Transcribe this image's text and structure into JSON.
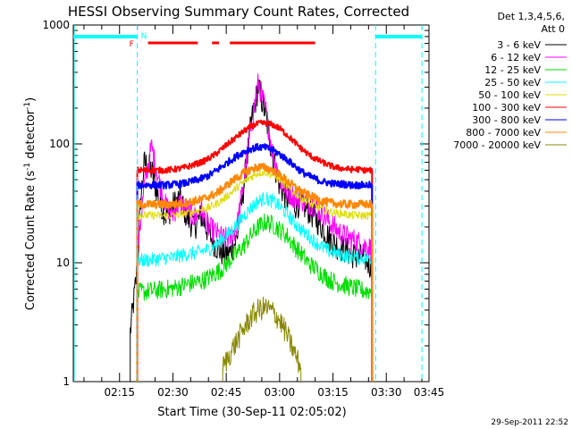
{
  "chart_data": {
    "type": "line",
    "title": "HESSI Observing Summary Count Rates, Corrected",
    "xlabel": "Start Time (30-Sep-11 02:05:02)",
    "ylabel_main": "Corrected Count Rate (s",
    "ylabel_sup1": "-1",
    "ylabel_mid": " detector",
    "ylabel_sup2": "-1",
    "ylabel_end": ")",
    "y_scale": "log",
    "ylim": [
      1,
      1000
    ],
    "xlim_minutes": [
      2.0,
      102.0
    ],
    "y_ticks": [
      {
        "value": 1,
        "label": "1"
      },
      {
        "value": 10,
        "label": "10"
      },
      {
        "value": 100,
        "label": "100"
      },
      {
        "value": 1000,
        "label": "1000"
      }
    ],
    "x_ticks": [
      {
        "value": 15,
        "label": "02:15"
      },
      {
        "value": 30,
        "label": "02:30"
      },
      {
        "value": 45,
        "label": "02:45"
      },
      {
        "value": 60,
        "label": "03:00"
      },
      {
        "value": 75,
        "label": "03:15"
      },
      {
        "value": 90,
        "label": "03:30"
      },
      {
        "value": 105,
        "label": "03:45"
      }
    ],
    "legend_header": [
      "Det 1,3,4,5,6,",
      "Att 0"
    ],
    "series": [
      {
        "name": "3 - 6 keV",
        "color": "#000000",
        "x": [
          18,
          20,
          21,
          22,
          24,
          26,
          28,
          30,
          32,
          34,
          36,
          38,
          40,
          42,
          44,
          46,
          48,
          50,
          52,
          54,
          56,
          58,
          60,
          62,
          64,
          66,
          68,
          70,
          72,
          74,
          76,
          78,
          80,
          82,
          84,
          86
        ],
        "y": [
          2.6,
          9,
          35,
          70,
          60,
          35,
          25,
          30,
          35,
          24,
          20,
          25,
          18,
          14,
          12,
          12,
          16,
          45,
          150,
          300,
          180,
          80,
          45,
          35,
          30,
          32,
          28,
          24,
          20,
          16,
          14,
          13,
          12,
          11,
          11,
          9
        ]
      },
      {
        "name": "6 - 12 keV",
        "color": "#ff00ff",
        "x": [
          20,
          22,
          24,
          26,
          28,
          30,
          32,
          34,
          36,
          38,
          40,
          42,
          44,
          46,
          48,
          50,
          52,
          54,
          56,
          58,
          60,
          62,
          64,
          66,
          68,
          70,
          72,
          74,
          76,
          78,
          80,
          82,
          84,
          86
        ],
        "y": [
          12,
          45,
          95,
          50,
          30,
          26,
          32,
          28,
          24,
          28,
          20,
          18,
          16,
          16,
          20,
          50,
          140,
          330,
          200,
          85,
          50,
          40,
          36,
          34,
          32,
          30,
          26,
          22,
          19,
          17,
          16,
          15,
          14,
          13
        ]
      },
      {
        "name": "12 - 25 keV",
        "color": "#00dd00",
        "x": [
          20,
          22,
          24,
          26,
          28,
          30,
          32,
          34,
          36,
          38,
          40,
          42,
          44,
          46,
          48,
          50,
          52,
          54,
          56,
          58,
          60,
          62,
          64,
          66,
          68,
          70,
          72,
          74,
          76,
          78,
          80,
          82,
          84,
          86
        ],
        "y": [
          5.6,
          5.7,
          5.8,
          5.9,
          6.0,
          6.1,
          6.3,
          6.6,
          6.8,
          7.0,
          7.5,
          8.2,
          9.0,
          10.5,
          12,
          14,
          17,
          20,
          22,
          21,
          19,
          17,
          14,
          12,
          10,
          9,
          8,
          7.2,
          6.8,
          6.5,
          6.2,
          6.0,
          5.8,
          5.8
        ]
      },
      {
        "name": "25 - 50 keV",
        "color": "#00ffff",
        "x": [
          20,
          22,
          24,
          26,
          28,
          30,
          32,
          34,
          36,
          38,
          40,
          42,
          44,
          46,
          48,
          50,
          52,
          54,
          56,
          58,
          60,
          62,
          64,
          66,
          68,
          70,
          72,
          74,
          76,
          78,
          80,
          82,
          84,
          86
        ],
        "y": [
          10.5,
          10.5,
          10.6,
          10.8,
          11,
          11,
          11.5,
          11.8,
          12,
          12.5,
          13,
          14,
          16,
          18,
          21,
          25,
          29,
          33,
          35,
          33,
          30,
          26,
          22,
          19,
          17,
          15,
          13.5,
          12.5,
          12,
          11.5,
          11.3,
          11,
          11,
          11
        ]
      },
      {
        "name": "50 - 100 keV",
        "color": "#dddd00",
        "x": [
          20,
          22,
          24,
          26,
          28,
          30,
          32,
          34,
          36,
          38,
          40,
          42,
          44,
          46,
          48,
          50,
          52,
          54,
          56,
          58,
          60,
          62,
          64,
          66,
          68,
          70,
          72,
          74,
          76,
          78,
          80,
          82,
          84,
          86
        ],
        "y": [
          25,
          25,
          25,
          25,
          25,
          25,
          25.5,
          26,
          27,
          28,
          29,
          31,
          34,
          38,
          43,
          48,
          53,
          57,
          58,
          55,
          50,
          44,
          39,
          35,
          32,
          30,
          28,
          27,
          26,
          26,
          25,
          25,
          25,
          25
        ]
      },
      {
        "name": "100 - 300 keV",
        "color": "#ff0000",
        "x": [
          20,
          22,
          24,
          26,
          28,
          30,
          32,
          34,
          36,
          38,
          40,
          42,
          44,
          46,
          48,
          50,
          52,
          54,
          56,
          58,
          60,
          62,
          64,
          66,
          68,
          70,
          72,
          74,
          76,
          78,
          80,
          82,
          84,
          86
        ],
        "y": [
          60,
          60,
          60,
          60,
          60,
          61,
          62,
          64,
          67,
          70,
          75,
          82,
          92,
          103,
          115,
          128,
          140,
          148,
          150,
          145,
          135,
          120,
          105,
          92,
          82,
          75,
          70,
          66,
          63,
          62,
          61,
          61,
          60,
          60
        ]
      },
      {
        "name": "300 - 800 keV",
        "color": "#0000ff",
        "x": [
          20,
          22,
          24,
          26,
          28,
          30,
          32,
          34,
          36,
          38,
          40,
          42,
          44,
          46,
          48,
          50,
          52,
          54,
          56,
          58,
          60,
          62,
          64,
          66,
          68,
          70,
          72,
          74,
          76,
          78,
          80,
          82,
          84,
          86
        ],
        "y": [
          45,
          45,
          45,
          45,
          45,
          45.5,
          46,
          47,
          49,
          51,
          54,
          59,
          65,
          72,
          79,
          86,
          91,
          94,
          93,
          89,
          82,
          74,
          66,
          59,
          54,
          51,
          48,
          47,
          46,
          46,
          45,
          45,
          45,
          45
        ]
      },
      {
        "name": "800 - 7000 keV",
        "color": "#ff8800",
        "x": [
          20,
          22,
          24,
          26,
          28,
          30,
          32,
          34,
          36,
          38,
          40,
          42,
          44,
          46,
          48,
          50,
          52,
          54,
          56,
          58,
          60,
          62,
          64,
          66,
          68,
          70,
          72,
          74,
          76,
          78,
          80,
          82,
          84,
          86
        ],
        "y": [
          31,
          31,
          31,
          31,
          31,
          31,
          31.5,
          32,
          33,
          34,
          36,
          38,
          42,
          47,
          52,
          57,
          61,
          64,
          63,
          60,
          55,
          49,
          44,
          40,
          37,
          35,
          33,
          32,
          31.5,
          31,
          31,
          31,
          31,
          31
        ]
      },
      {
        "name": "7000 - 20000 keV",
        "color": "#888800",
        "x": [
          44,
          46,
          48,
          50,
          52,
          54,
          56,
          58,
          60,
          62,
          64,
          66
        ],
        "y": [
          1.3,
          1.7,
          2.2,
          2.8,
          3.5,
          4.0,
          4.2,
          3.9,
          3.3,
          2.5,
          1.8,
          1.3
        ]
      }
    ],
    "attenuator_markers": [
      {
        "label": "F",
        "color": "#ff0000"
      },
      {
        "label": "N",
        "color": "#00ffff"
      }
    ],
    "red_bar_segments_minutes": [
      [
        23,
        37
      ],
      [
        41,
        43
      ],
      [
        46,
        70
      ]
    ],
    "cyan_top_segments_minutes": [
      [
        2,
        20
      ],
      [
        87,
        100
      ]
    ],
    "data_gaps_minutes": [
      [
        14,
        17
      ],
      [
        87,
        89
      ]
    ],
    "timestamp": "29-Sep-2011 22:52"
  }
}
